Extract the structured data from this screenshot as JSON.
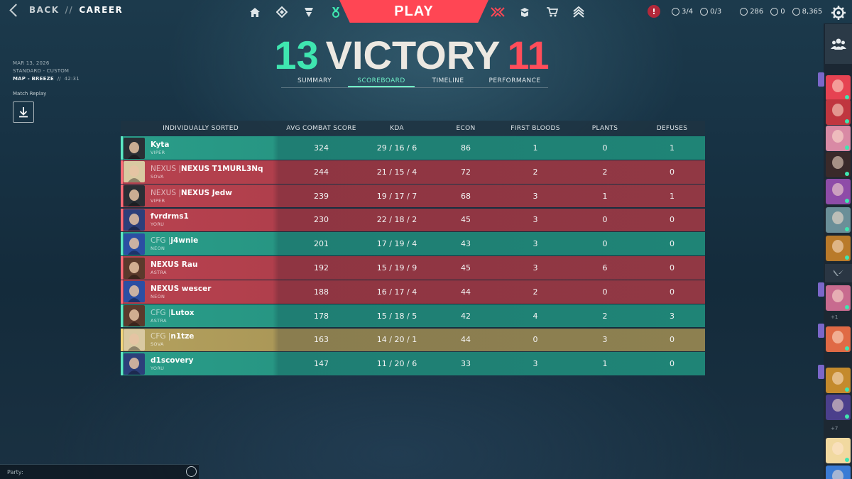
{
  "header": {
    "back_label": "BACK",
    "separator": "//",
    "breadcrumb": "CAREER",
    "play_label": "PLAY",
    "alert_label": "!",
    "currency": [
      {
        "icon": "gem-icon",
        "value": "3/4"
      },
      {
        "icon": "plus-circle-icon",
        "value": "0/3"
      },
      {
        "icon": "valorant-points-icon",
        "value": "286"
      },
      {
        "icon": "radianite-icon",
        "value": "0"
      },
      {
        "icon": "kingdom-credits-icon",
        "value": "8,365"
      }
    ]
  },
  "match": {
    "date": "MAR 13, 2026",
    "mode": "STANDARD - CUSTOM",
    "map": "MAP - BREEZE",
    "separator": "//",
    "duration": "42:31",
    "replay_label": "Match Replay"
  },
  "score": {
    "win": "13",
    "title": "VICTORY",
    "lose": "11"
  },
  "tabs": [
    "SUMMARY",
    "SCOREBOARD",
    "TIMELINE",
    "PERFORMANCE"
  ],
  "active_tab": "SCOREBOARD",
  "columns": [
    "INDIVIDUALLY SORTED",
    "AVG COMBAT SCORE",
    "KDA",
    "ECON",
    "FIRST BLOODS",
    "PLANTS",
    "DEFUSES"
  ],
  "players": [
    {
      "tag": "",
      "name": "Kyta",
      "agent": "VIPER",
      "acs": "324",
      "kda": "29 / 16 / 6",
      "econ": "86",
      "fb": "1",
      "plants": "0",
      "defuses": "1",
      "team": "g",
      "color": "#2a2f35"
    },
    {
      "tag": "NEXUS |",
      "name": "NEXUS T1MURL3Nq",
      "agent": "SOVA",
      "acs": "244",
      "kda": "21 / 15 / 4",
      "econ": "72",
      "fb": "2",
      "plants": "2",
      "defuses": "0",
      "team": "r",
      "color": "#d9c9a1"
    },
    {
      "tag": "NEXUS |",
      "name": "NEXUS Jedw",
      "agent": "VIPER",
      "acs": "239",
      "kda": "19 / 17 / 7",
      "econ": "68",
      "fb": "3",
      "plants": "1",
      "defuses": "1",
      "team": "r",
      "color": "#2a2f35"
    },
    {
      "tag": "",
      "name": "fvrdrms1",
      "agent": "YORU",
      "acs": "230",
      "kda": "22 / 18 / 2",
      "econ": "45",
      "fb": "3",
      "plants": "0",
      "defuses": "0",
      "team": "r",
      "color": "#2c3f7a"
    },
    {
      "tag": "CFG |",
      "name": "j4wnie",
      "agent": "NEON",
      "acs": "201",
      "kda": "17 / 19 / 4",
      "econ": "43",
      "fb": "3",
      "plants": "0",
      "defuses": "0",
      "team": "g",
      "color": "#2b4fa3"
    },
    {
      "tag": "",
      "name": "NEXUS Rau",
      "agent": "ASTRA",
      "acs": "192",
      "kda": "15 / 19 / 9",
      "econ": "45",
      "fb": "3",
      "plants": "6",
      "defuses": "0",
      "team": "r",
      "color": "#5b3a2c"
    },
    {
      "tag": "",
      "name": "NEXUS wescer",
      "agent": "NEON",
      "acs": "188",
      "kda": "16 / 17 / 4",
      "econ": "44",
      "fb": "2",
      "plants": "0",
      "defuses": "0",
      "team": "r",
      "color": "#2b4fa3"
    },
    {
      "tag": "CFG |",
      "name": "Lutox",
      "agent": "ASTRA",
      "acs": "178",
      "kda": "15 / 18 / 5",
      "econ": "42",
      "fb": "4",
      "plants": "2",
      "defuses": "3",
      "team": "g",
      "color": "#5b3a2c"
    },
    {
      "tag": "CFG |",
      "name": "n1tze",
      "agent": "SOVA",
      "acs": "163",
      "kda": "14 / 20 / 1",
      "econ": "44",
      "fb": "0",
      "plants": "3",
      "defuses": "0",
      "team": "y",
      "color": "#d9c9a1"
    },
    {
      "tag": "",
      "name": "d1scovery",
      "agent": "YORU",
      "acs": "147",
      "kda": "11 / 20 / 6",
      "econ": "33",
      "fb": "3",
      "plants": "1",
      "defuses": "0",
      "team": "g",
      "color": "#2c3f7a"
    }
  ],
  "social": {
    "counts": [
      "+1",
      "+7"
    ]
  },
  "party": {
    "label": "Party:"
  },
  "colors": {
    "accent_red": "#ff4654",
    "win_green": "#3fe6b0",
    "lose_red": "#ff4d5a"
  }
}
